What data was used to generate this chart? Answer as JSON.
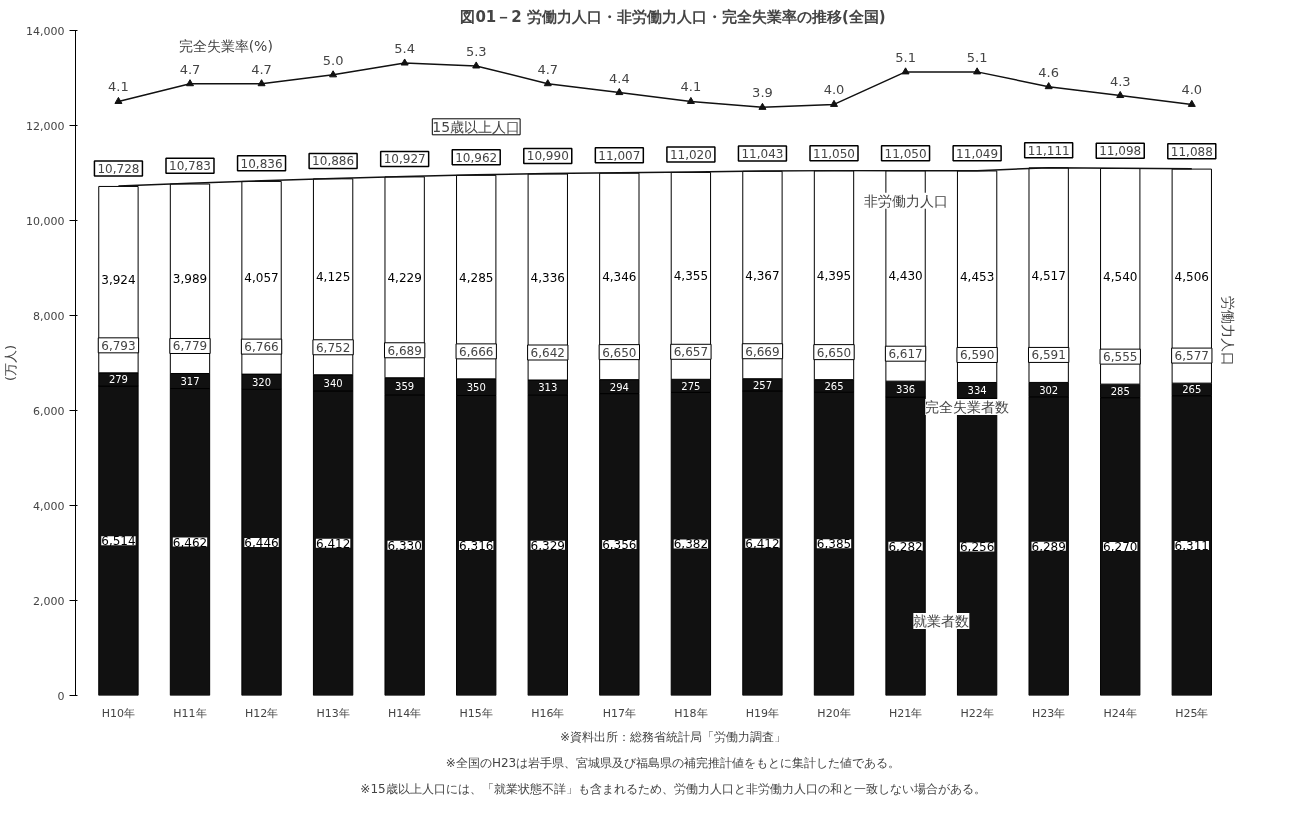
{
  "chart_data": {
    "type": "bar",
    "stacked": true,
    "title": "図01－2 労働力人口・非労働力人口・完全失業率の推移(全国)",
    "ylabel": "(万人)",
    "categories": [
      "H10年",
      "H11年",
      "H12年",
      "H13年",
      "H14年",
      "H15年",
      "H16年",
      "H17年",
      "H18年",
      "H19年",
      "H20年",
      "H21年",
      "H22年",
      "H23年",
      "H24年",
      "H25年"
    ],
    "ylim": [
      0,
      14000
    ],
    "yticks": [
      0,
      {
        "value": 2000,
        "label": "2,000"
      },
      {
        "value": 4000,
        "label": "4,000"
      },
      {
        "value": 6000,
        "label": "6,000"
      },
      {
        "value": 8000,
        "label": "8,000"
      },
      {
        "value": 10000,
        "label": "10,000"
      },
      {
        "value": 12000,
        "label": "12,000"
      },
      {
        "value": 14000,
        "label": "14,000"
      }
    ],
    "y2lim": [
      -16,
      6.5
    ],
    "grid": false,
    "series": [
      {
        "name": "就業者数",
        "color": "#111111",
        "values": [
          6514,
          6462,
          6446,
          6412,
          6330,
          6316,
          6329,
          6356,
          6382,
          6412,
          6385,
          6282,
          6256,
          6289,
          6270,
          6311
        ],
        "value_labels": [
          "6,514",
          "6,462",
          "6,446",
          "6,412",
          "6,330",
          "6,316",
          "6,329",
          "6,356",
          "6,382",
          "6,412",
          "6,385",
          "6,282",
          "6,256",
          "6,289",
          "6,270",
          "6,311"
        ]
      },
      {
        "name": "完全失業者数",
        "color": "#111111",
        "values": [
          279,
          317,
          320,
          340,
          359,
          350,
          313,
          294,
          275,
          257,
          265,
          336,
          334,
          302,
          285,
          265
        ],
        "value_labels": [
          "279",
          "317",
          "320",
          "340",
          "359",
          "350",
          "313",
          "294",
          "275",
          "257",
          "265",
          "336",
          "334",
          "302",
          "285",
          "265"
        ]
      },
      {
        "name": "非労働力人口",
        "color": "#ffffff",
        "values": [
          3924,
          3989,
          4057,
          4125,
          4229,
          4285,
          4336,
          4346,
          4355,
          4367,
          4395,
          4430,
          4453,
          4517,
          4540,
          4506
        ],
        "value_labels": [
          "3,924",
          "3,989",
          "4,057",
          "4,125",
          "4,229",
          "4,285",
          "4,336",
          "4,346",
          "4,355",
          "4,367",
          "4,395",
          "4,430",
          "4,453",
          "4,517",
          "4,540",
          "4,506"
        ]
      },
      {
        "name": "15歳以上人口",
        "type": "line",
        "color": "#111111",
        "values": [
          10728,
          10783,
          10836,
          10886,
          10927,
          10962,
          10990,
          11007,
          11020,
          11043,
          11050,
          11050,
          11049,
          11111,
          11098,
          11088
        ],
        "value_labels": [
          "10,728",
          "10,783",
          "10,836",
          "10,886",
          "10,927",
          "10,962",
          "10,990",
          "11,007",
          "11,020",
          "11,043",
          "11,050",
          "11,050",
          "11,049",
          "11,111",
          "11,098",
          "11,088"
        ]
      },
      {
        "name": "完全失業率(%)",
        "type": "line",
        "axis": "y2",
        "marker": "triangle",
        "color": "#111111",
        "values": [
          4.1,
          4.7,
          4.7,
          5.0,
          5.4,
          5.3,
          4.7,
          4.4,
          4.1,
          3.9,
          4.0,
          5.1,
          5.1,
          4.6,
          4.3,
          4.0
        ],
        "value_labels": [
          "4.1",
          "4.7",
          "4.7",
          "5.0",
          "5.4",
          "5.3",
          "4.7",
          "4.4",
          "4.1",
          "3.9",
          "4.0",
          "5.1",
          "5.1",
          "4.6",
          "4.3",
          "4.0"
        ]
      }
    ],
    "annotations": [
      {
        "text": "6,793",
        "x": "H10年",
        "y": 6793
      },
      {
        "text": "6,779",
        "x": "H11年",
        "y": 6779
      },
      {
        "text": "6,766",
        "x": "H12年",
        "y": 6766
      },
      {
        "text": "6,752",
        "x": "H13年",
        "y": 6752
      },
      {
        "text": "6,689",
        "x": "H14年",
        "y": 6689
      },
      {
        "text": "6,666",
        "x": "H15年",
        "y": 6666
      },
      {
        "text": "6,642",
        "x": "H16年",
        "y": 6642
      },
      {
        "text": "6,650",
        "x": "H17年",
        "y": 6650
      },
      {
        "text": "6,657",
        "x": "H18年",
        "y": 6657
      },
      {
        "text": "6,669",
        "x": "H19年",
        "y": 6669
      },
      {
        "text": "6,650",
        "x": "H20年",
        "y": 6650
      },
      {
        "text": "6,617",
        "x": "H21年",
        "y": 6617
      },
      {
        "text": "6,590",
        "x": "H22年",
        "y": 6590
      },
      {
        "text": "6,591",
        "x": "H23年",
        "y": 6591
      },
      {
        "text": "6,555",
        "x": "H24年",
        "y": 6555
      },
      {
        "text": "6,577",
        "x": "H25年",
        "y": 6577
      },
      "労働力人口",
      "※資料出所：総務省統計局「労働力調査」",
      "※全国のH23は岩手県、宮城県及び福島県の補完推計値をもとに集計した値である。",
      "※15歳以上人口には、「就業状態不詳」も含まれるため、労働力人口と非労働力人口の和と一致しない場合がある。"
    ]
  }
}
